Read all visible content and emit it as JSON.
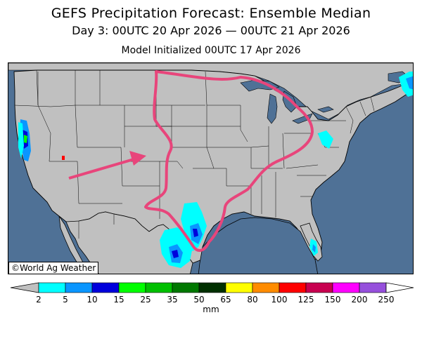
{
  "header": {
    "title": "GEFS Precipitation Forecast: Ensemble Median",
    "valid_period": "Day 3: 00UTC 20 Apr 2026 — 00UTC 21 Apr 2026",
    "init": "Model Initialized 00UTC 17 Apr 2026"
  },
  "map": {
    "credit": "©World Ag Weather",
    "land_color": "#c0c0c0",
    "water_color": "#4f7196",
    "annotation_color": "#e8457b"
  },
  "legend": {
    "unit": "mm",
    "ticks": [
      "2",
      "5",
      "10",
      "15",
      "25",
      "35",
      "50",
      "65",
      "80",
      "100",
      "125",
      "150",
      "200",
      "250"
    ],
    "colors": [
      "#00ffff",
      "#0a96ff",
      "#0000dc",
      "#00ff00",
      "#00c000",
      "#007800",
      "#003000",
      "#ffff00",
      "#ff8c00",
      "#ff0000",
      "#c80050",
      "#ff00ff",
      "#9650dc"
    ]
  }
}
